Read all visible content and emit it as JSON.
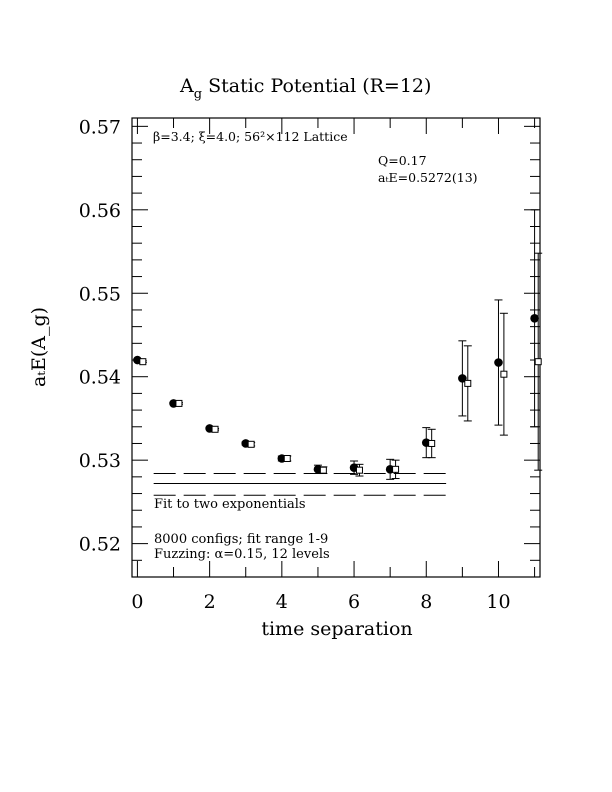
{
  "title": {
    "main": "A",
    "sub": "g",
    "rest": " Static Potential (R=12)"
  },
  "annotations": {
    "lattice": "β=3.4; ξ=4.0; 56²×112 Lattice",
    "q_value": "Q=0.17",
    "energy": "aₜE=0.5272(13)",
    "fit_label": "Fit to two exponentials",
    "configs": "8000 configs; fit range 1-9",
    "fuzzing": "Fuzzing: α=0.15, 12 levels"
  },
  "chart_data": {
    "type": "scatter",
    "xlabel": "time separation",
    "ylabel": "aₜE(A_g)",
    "xlim": [
      -0.15,
      11.15
    ],
    "ylim": [
      0.516,
      0.571
    ],
    "x_ticks": [
      0,
      2,
      4,
      6,
      8,
      10
    ],
    "y_ticks": [
      0.52,
      0.53,
      0.54,
      0.55,
      0.56,
      0.57
    ],
    "x_tick_labels": [
      "0",
      "2",
      "4",
      "6",
      "8",
      "10"
    ],
    "y_tick_labels": [
      "0.52",
      "0.53",
      "0.54",
      "0.55",
      "0.56",
      "0.57"
    ],
    "series": [
      {
        "marker": "filled-circle",
        "x": [
          0,
          1,
          2,
          3,
          4,
          5,
          6,
          7,
          8,
          9,
          10,
          11
        ],
        "y": [
          0.542,
          0.5368,
          0.5338,
          0.532,
          0.5302,
          0.5289,
          0.5291,
          0.5289,
          0.5321,
          0.5398,
          0.5417,
          0.547
        ],
        "err": [
          0.0001,
          0.0001,
          0.0001,
          0.0002,
          0.0003,
          0.0005,
          0.0008,
          0.0012,
          0.0018,
          0.0045,
          0.0075,
          0.013
        ]
      },
      {
        "marker": "open-square",
        "x": [
          0.15,
          1.15,
          2.15,
          3.15,
          4.15,
          5.15,
          6.15,
          7.15,
          8.15,
          9.15,
          10.15,
          11.1
        ],
        "y": [
          0.5418,
          0.5368,
          0.5337,
          0.5319,
          0.5302,
          0.5288,
          0.5288,
          0.5289,
          0.532,
          0.5392,
          0.5403,
          0.5418
        ],
        "err": [
          0.0001,
          0.0001,
          0.0001,
          0.0002,
          0.0003,
          0.0004,
          0.0007,
          0.0011,
          0.0017,
          0.0045,
          0.0073,
          0.013
        ]
      }
    ],
    "fit": {
      "x_range": [
        0.45,
        8.55
      ],
      "center": 0.5272,
      "upper": 0.5284,
      "lower": 0.5258
    }
  }
}
